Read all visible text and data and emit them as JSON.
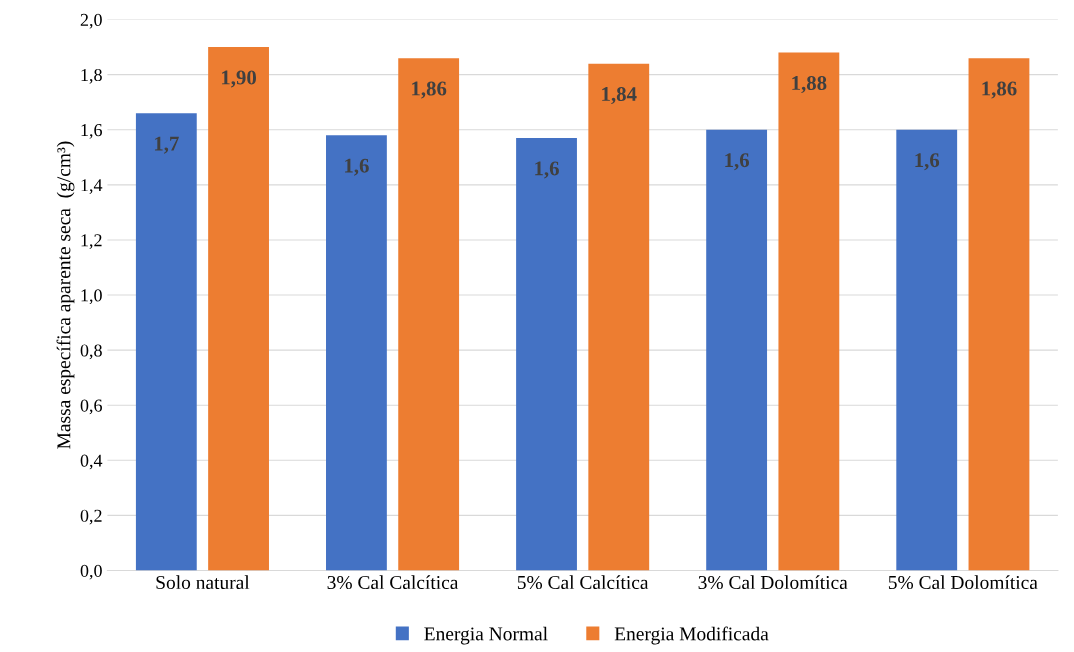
{
  "chart_data": {
    "type": "bar",
    "ylabel": "Massa específica aparente seca  (g/cm³)",
    "categories": [
      "Solo natural",
      "3% Cal Calcítica",
      "5% Cal Calcítica",
      "3% Cal Dolomítica",
      "5% Cal Dolomítica"
    ],
    "series": [
      {
        "name": "Energia Normal",
        "color": "#4472c4",
        "values": [
          1.66,
          1.58,
          1.57,
          1.6,
          1.6
        ],
        "value_labels": [
          "1,7",
          "1,6",
          "1,6",
          "1,6",
          "1,6"
        ]
      },
      {
        "name": "Energia Modificada",
        "color": "#ed7d31",
        "values": [
          1.9,
          1.86,
          1.84,
          1.88,
          1.86
        ],
        "value_labels": [
          "1,90",
          "1,86",
          "1,84",
          "1,88",
          "1,86"
        ]
      }
    ],
    "ylim": [
      0,
      2.0
    ],
    "yticks": [
      {
        "value": 0,
        "label": "0,0"
      },
      {
        "value": 0.2,
        "label": "0,2"
      },
      {
        "value": 0.4,
        "label": "0,4"
      },
      {
        "value": 0.6,
        "label": "0,6"
      },
      {
        "value": 0.8,
        "label": "0,8"
      },
      {
        "value": 1.0,
        "label": "1,0"
      },
      {
        "value": 1.2,
        "label": "1,2"
      },
      {
        "value": 1.4,
        "label": "1,4"
      },
      {
        "value": 1.6,
        "label": "1,6"
      },
      {
        "value": 1.8,
        "label": "1,8"
      },
      {
        "value": 2.0,
        "label": "2,0"
      }
    ],
    "grid": "y",
    "legend": "bottom"
  }
}
